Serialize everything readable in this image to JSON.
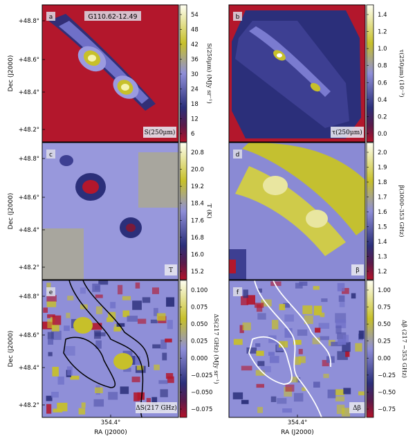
{
  "chart_data": [
    {
      "type": "heatmap",
      "panel": "a",
      "title": "G110.62-12.49",
      "tag": "S(250μm)",
      "ylabel": "Dec (J2000)",
      "yticks": [
        "+48.8°",
        "+48.6°",
        "+48.4°",
        "+48.2°"
      ],
      "colorbar": {
        "label": "S(250μm) (MJy sr⁻¹)",
        "ticks": [
          "54",
          "48",
          "42",
          "36",
          "30",
          "24",
          "18",
          "12",
          "6"
        ],
        "range": [
          4,
          58
        ]
      },
      "features": [
        "bright elongated filament from upper-left to lower-right with two cores"
      ]
    },
    {
      "type": "heatmap",
      "panel": "b",
      "tag": "τ(250μm)",
      "colorbar": {
        "label": "τ(250μm) (10⁻³)",
        "ticks": [
          "1.4",
          "1.2",
          "1.0",
          "0.8",
          "0.6",
          "0.4",
          "0.2",
          "0.0"
        ],
        "range": [
          -0.15,
          1.42
        ]
      }
    },
    {
      "type": "heatmap",
      "panel": "c",
      "tag": "T",
      "ylabel": "Dec (J2000)",
      "yticks": [
        "+48.8°",
        "+48.6°",
        "+48.4°",
        "+48.2°"
      ],
      "colorbar": {
        "label": "T (K)",
        "ticks": [
          "20.8",
          "20.0",
          "19.2",
          "18.4",
          "17.6",
          "16.8",
          "16.0",
          "15.2"
        ],
        "range": [
          15.2,
          21.0
        ]
      }
    },
    {
      "type": "heatmap",
      "panel": "d",
      "tag": "β",
      "colorbar": {
        "label": "β(3000–353 GHz)",
        "ticks": [
          "2.0",
          "1.9",
          "1.8",
          "1.7",
          "1.6",
          "1.5",
          "1.4",
          "1.3",
          "1.2"
        ],
        "range": [
          1.12,
          2.05
        ]
      }
    },
    {
      "type": "heatmap",
      "panel": "e",
      "tag": "ΔS(217 GHz)",
      "ylabel": "Dec (J2000)",
      "yticks": [
        "+48.8°",
        "+48.6°",
        "+48.4°",
        "+48.2°"
      ],
      "xlabel": "RA (J2000)",
      "xticks": [
        "354.4°"
      ],
      "colorbar": {
        "label": "ΔS(217 GHz) (MJy sr⁻¹)",
        "ticks": [
          "0.100",
          "0.075",
          "0.050",
          "0.025",
          "0.000",
          "−0.025",
          "−0.050",
          "−0.075"
        ],
        "range": [
          -0.09,
          0.11
        ]
      }
    },
    {
      "type": "heatmap",
      "panel": "f",
      "tag": "Δβ",
      "xlabel": "RA (J2000)",
      "xticks": [
        "354.4°"
      ],
      "colorbar": {
        "label": "Δβ (217 −353 GHz)",
        "ticks": [
          "1.00",
          "0.75",
          "0.50",
          "0.25",
          "0.00",
          "−0.25",
          "−0.50",
          "−0.75"
        ],
        "range": [
          -0.85,
          1.1
        ]
      }
    }
  ],
  "colors": {
    "low": "#b3122a",
    "midlow": "#2b2f7a",
    "mid": "#8f8fd8",
    "midhigh": "#c7c02a",
    "high": "#fffff2"
  }
}
